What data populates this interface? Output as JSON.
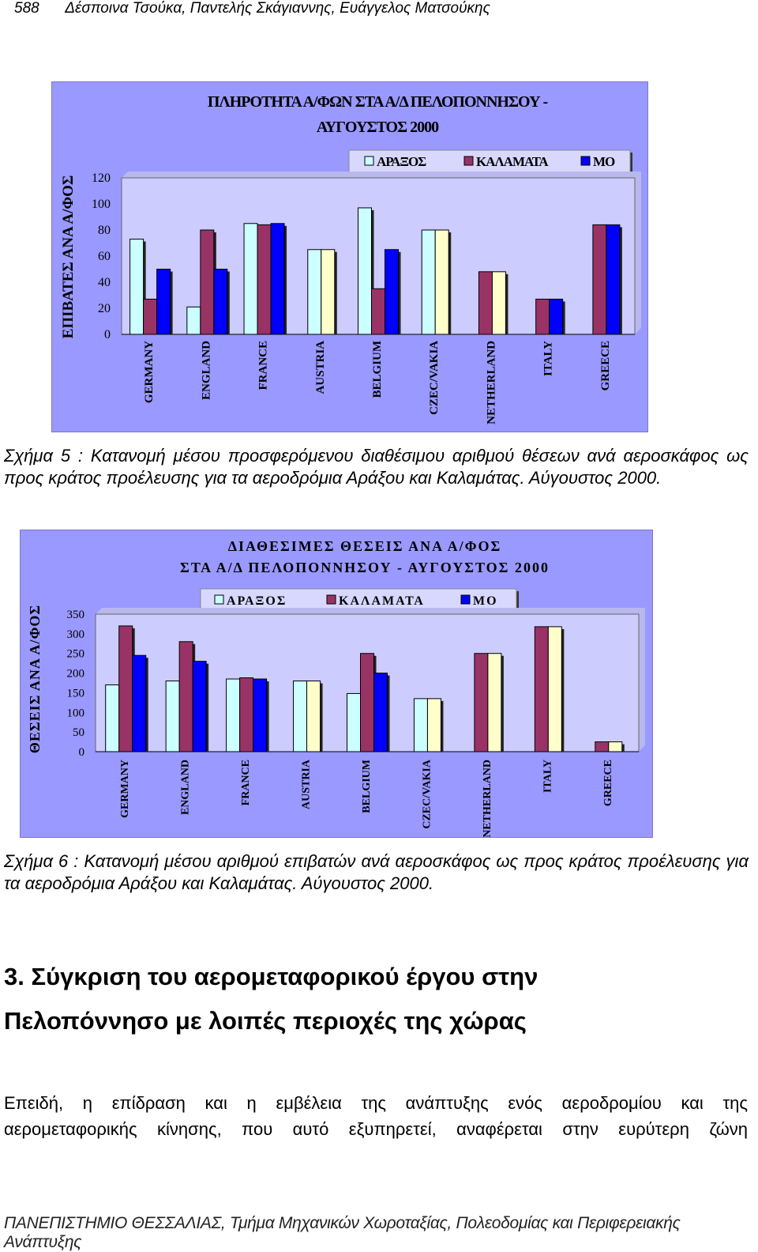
{
  "header": {
    "page_number": "588",
    "authors": "Δέσποινα Τσούκα, Παντελής Σκάγιαννης, Ευάγγελος Ματσούκης"
  },
  "chart_data": [
    {
      "type": "bar",
      "title": [
        "ΠΛΗΡΟΤΗΤΑ Α/ΦΩΝ ΣΤΑ Α/Δ ΠΕΛΟΠΟΝΝΗΣΟΥ -",
        "ΑΥΓΟΥΣΤΟΣ 2000"
      ],
      "ylabel": "ΕΠΙΒΑΤΕΣ ΑΝΑ Α/ΦΟΣ",
      "ylim": [
        0,
        120
      ],
      "yticks": [
        0,
        20,
        40,
        60,
        80,
        100,
        120
      ],
      "categories": [
        "GERMANY",
        "ENGLAND",
        "FRANCE",
        "AUSTRIA",
        "BELGIUM",
        "CZEC/VAKIA",
        "NETHERLAND",
        "ITALY",
        "GREECE"
      ],
      "series": [
        {
          "name": "ΑΡΑΞΟΣ",
          "values": [
            73,
            21,
            85,
            65,
            97,
            80,
            null,
            null,
            null
          ]
        },
        {
          "name": "ΚΑΛΑΜΑΤΑ",
          "values": [
            27,
            80,
            84,
            null,
            35,
            null,
            48,
            27,
            84
          ]
        },
        {
          "name": "ΜΟ",
          "values": [
            50,
            50,
            85,
            65,
            65,
            80,
            48,
            27,
            84
          ]
        }
      ],
      "legend": "top",
      "grid": false
    },
    {
      "type": "bar",
      "title": [
        "ΔΙΑΘΕΣΙΜΕΣ ΘΕΣΕΙΣ ΑΝΑ Α/ΦΟΣ",
        "ΣΤΑ Α/Δ ΠΕΛΟΠΟΝΝΗΣΟΥ - ΑΥΓΟΥΣΤΟΣ 2000"
      ],
      "ylabel": "ΘΕΣΕΙΣ ΑΝΑ Α/ΦΟΣ",
      "ylim": [
        0,
        350
      ],
      "yticks": [
        0,
        50,
        100,
        150,
        200,
        250,
        300,
        350
      ],
      "categories": [
        "GERMANY",
        "ENGLAND",
        "FRANCE",
        "AUSTRIA",
        "BELGIUM",
        "CZEC/VAKIA",
        "NETHERLAND",
        "ITALY",
        "GREECE"
      ],
      "series": [
        {
          "name": "ΑΡΑΞΟΣ",
          "values": [
            170,
            180,
            185,
            180,
            148,
            135,
            null,
            null,
            null
          ]
        },
        {
          "name": "ΚΑΛΑΜΑΤΑ",
          "values": [
            320,
            280,
            188,
            null,
            250,
            null,
            250,
            318,
            25
          ]
        },
        {
          "name": "ΜΟ",
          "values": [
            245,
            230,
            185,
            180,
            200,
            135,
            250,
            318,
            25
          ]
        }
      ],
      "legend": "top",
      "grid": false
    }
  ],
  "colors": {
    "araxos": "#ccffff",
    "kalamata": "#993366",
    "mo": "#0000ff",
    "mo_alt": "#ffffcc",
    "plot_bg": "#ccccff",
    "chart_bg": "#9999ff"
  },
  "captions": {
    "fig5": "Σχήμα 5 : Κατανομή μέσου προσφερόμενου διαθέσιμου αριθμού θέσεων ανά αεροσκάφος ως προς κράτος προέλευσης για τα αεροδρόμια Αράξου και Καλαμάτας. Αύγουστος 2000.",
    "fig6": "Σχήμα 6 : Κατανομή μέσου αριθμού επιβατών ανά αεροσκάφος ως προς κράτος προέλευσης για τα αεροδρόμια Αράξου και Καλαμάτας. Αύγουστος 2000."
  },
  "section": {
    "line1": "3. Σύγκριση του αερομεταφορικού έργου στην",
    "line2": "Πελοπόννησο με λοιπές περιοχές της χώρας"
  },
  "paragraph": {
    "line1": "Επειδή, η επίδραση και η εμβέλεια της ανάπτυξης ενός αεροδρομίου και της",
    "line2": "αερομεταφορικής κίνησης, που αυτό εξυπηρετεί, αναφέρεται στην ευρύτερη ζώνη"
  },
  "footer": "ΠΑΝΕΠΙΣΤΗΜΙΟ ΘΕΣΣΑΛΙΑΣ, Τμήμα Μηχανικών Χωροταξίας, Πολεοδομίας και Περιφερειακής Ανάπτυξης"
}
